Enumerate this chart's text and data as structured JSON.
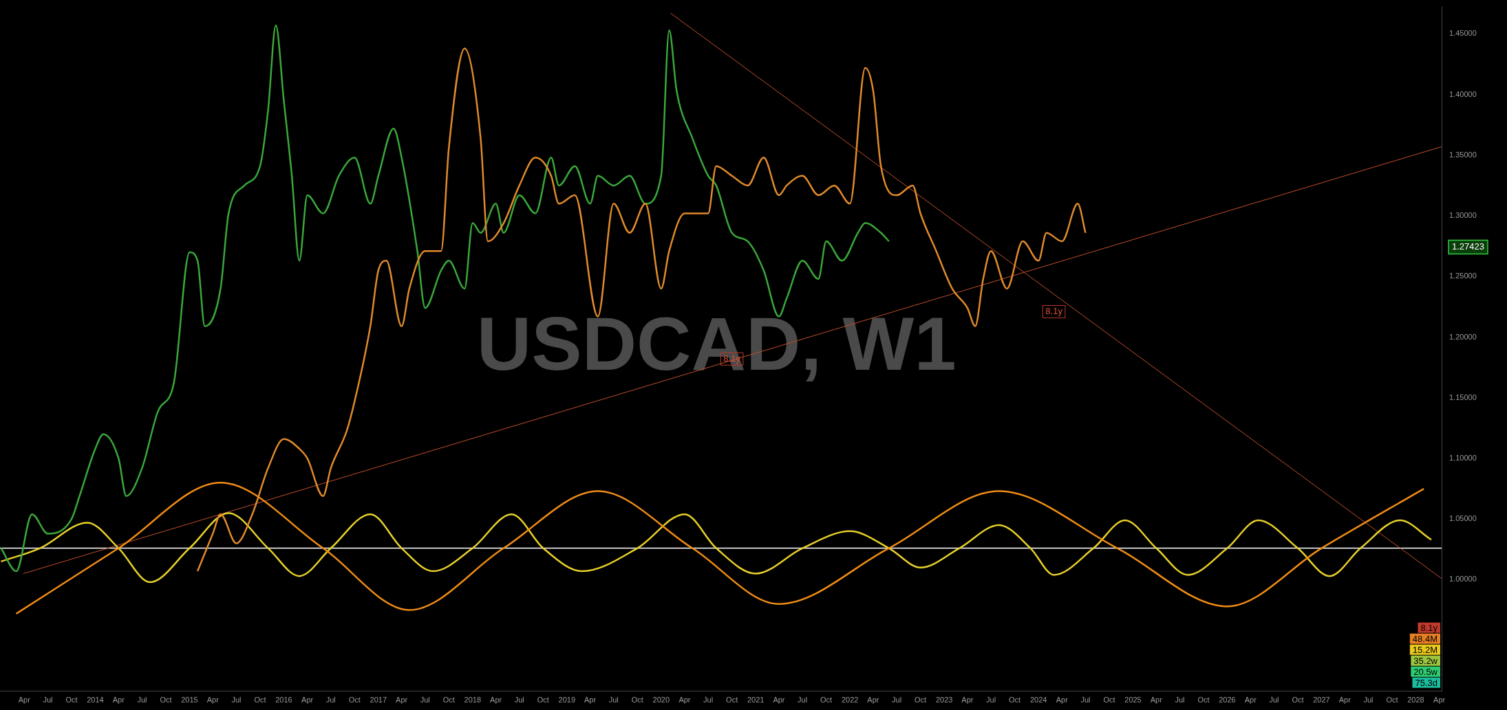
{
  "chart_data": {
    "type": "line",
    "title": "USDCAD, W1",
    "xlim": [
      "2012-12-28",
      "2028-04-10"
    ],
    "ylim": [
      0.908,
      1.4725
    ],
    "yticks": [
      {
        "value": 1.0,
        "label": "1.00000"
      },
      {
        "value": 1.05,
        "label": "1.05000"
      },
      {
        "value": 1.1,
        "label": "1.10000"
      },
      {
        "value": 1.15,
        "label": "1.15000"
      },
      {
        "value": 1.2,
        "label": "1.20000"
      },
      {
        "value": 1.25,
        "label": "1.25000"
      },
      {
        "value": 1.3,
        "label": "1.30000"
      },
      {
        "value": 1.35,
        "label": "1.35000"
      },
      {
        "value": 1.4,
        "label": "1.40000"
      },
      {
        "value": 1.45,
        "label": "1.45000"
      }
    ],
    "xticks": [
      {
        "value": "2013-04",
        "label": "Apr"
      },
      {
        "value": "2013-07",
        "label": "Jul"
      },
      {
        "value": "2013-10",
        "label": "Oct"
      },
      {
        "value": "2014-01",
        "label": "2014"
      },
      {
        "value": "2014-04",
        "label": "Apr"
      },
      {
        "value": "2014-07",
        "label": "Jul"
      },
      {
        "value": "2014-10",
        "label": "Oct"
      },
      {
        "value": "2015-01",
        "label": "2015"
      },
      {
        "value": "2015-04",
        "label": "Apr"
      },
      {
        "value": "2015-07",
        "label": "Jul"
      },
      {
        "value": "2015-10",
        "label": "Oct"
      },
      {
        "value": "2016-01",
        "label": "2016"
      },
      {
        "value": "2016-04",
        "label": "Apr"
      },
      {
        "value": "2016-07",
        "label": "Jul"
      },
      {
        "value": "2016-10",
        "label": "Oct"
      },
      {
        "value": "2017-01",
        "label": "2017"
      },
      {
        "value": "2017-04",
        "label": "Apr"
      },
      {
        "value": "2017-07",
        "label": "Jul"
      },
      {
        "value": "2017-10",
        "label": "Oct"
      },
      {
        "value": "2018-01",
        "label": "2018"
      },
      {
        "value": "2018-04",
        "label": "Apr"
      },
      {
        "value": "2018-07",
        "label": "Jul"
      },
      {
        "value": "2018-10",
        "label": "Oct"
      },
      {
        "value": "2019-01",
        "label": "2019"
      },
      {
        "value": "2019-04",
        "label": "Apr"
      },
      {
        "value": "2019-07",
        "label": "Jul"
      },
      {
        "value": "2019-10",
        "label": "Oct"
      },
      {
        "value": "2020-01",
        "label": "2020"
      },
      {
        "value": "2020-04",
        "label": "Apr"
      },
      {
        "value": "2020-07",
        "label": "Jul"
      },
      {
        "value": "2020-10",
        "label": "Oct"
      },
      {
        "value": "2021-01",
        "label": "2021"
      },
      {
        "value": "2021-04",
        "label": "Apr"
      },
      {
        "value": "2021-07",
        "label": "Jul"
      },
      {
        "value": "2021-10",
        "label": "Oct"
      },
      {
        "value": "2022-01",
        "label": "2022"
      },
      {
        "value": "2022-04",
        "label": "Apr"
      },
      {
        "value": "2022-07",
        "label": "Jul"
      },
      {
        "value": "2022-10",
        "label": "Oct"
      },
      {
        "value": "2023-01",
        "label": "2023"
      },
      {
        "value": "2023-04",
        "label": "Apr"
      },
      {
        "value": "2023-07",
        "label": "Jul"
      },
      {
        "value": "2023-10",
        "label": "Oct"
      },
      {
        "value": "2024-01",
        "label": "2024"
      },
      {
        "value": "2024-04",
        "label": "Apr"
      },
      {
        "value": "2024-07",
        "label": "Jul"
      },
      {
        "value": "2024-10",
        "label": "Oct"
      },
      {
        "value": "2025-01",
        "label": "2025"
      },
      {
        "value": "2025-04",
        "label": "Apr"
      },
      {
        "value": "2025-07",
        "label": "Jul"
      },
      {
        "value": "2025-10",
        "label": "Oct"
      },
      {
        "value": "2026-01",
        "label": "2026"
      },
      {
        "value": "2026-04",
        "label": "Apr"
      },
      {
        "value": "2026-07",
        "label": "Jul"
      },
      {
        "value": "2026-10",
        "label": "Oct"
      },
      {
        "value": "2027-01",
        "label": "2027"
      },
      {
        "value": "2027-04",
        "label": "Apr"
      },
      {
        "value": "2027-07",
        "label": "Jul"
      },
      {
        "value": "2027-10",
        "label": "Oct"
      },
      {
        "value": "2028-01",
        "label": "2028"
      },
      {
        "value": "2028-04",
        "label": "Apr"
      }
    ],
    "series": [
      {
        "color": "#e08a2c",
        "x": [
          "2015-02",
          "2015-04",
          "2015-05",
          "2015-07",
          "2015-09",
          "2015-11",
          "2016-01",
          "2016-03",
          "2016-04",
          "2016-06",
          "2016-07",
          "2016-09",
          "2016-10",
          "2016-12",
          "2017-01",
          "2017-02",
          "2017-04",
          "2017-05",
          "2017-07",
          "2017-09",
          "2017-10",
          "2017-12",
          "2018-02",
          "2018-03",
          "2018-05",
          "2018-07",
          "2018-09",
          "2018-11",
          "2018-12",
          "2019-02",
          "2019-05",
          "2019-07",
          "2019-09",
          "2019-11",
          "2020-01",
          "2020-02",
          "2020-04",
          "2020-07",
          "2020-08",
          "2020-10",
          "2020-12",
          "2021-02",
          "2021-04",
          "2021-05",
          "2021-07",
          "2021-09",
          "2021-11",
          "2022-01",
          "2022-03",
          "2022-04",
          "2022-05",
          "2022-07",
          "2022-09",
          "2022-10",
          "2022-12",
          "2023-02",
          "2023-04",
          "2023-05",
          "2023-06",
          "2023-07",
          "2023-09",
          "2023-11",
          "2024-01",
          "2024-02",
          "2024-04",
          "2024-06",
          "2024-07"
        ],
        "values": [
          1.007,
          1.038,
          1.054,
          1.03,
          1.054,
          1.092,
          1.116,
          1.108,
          1.1,
          1.069,
          1.092,
          1.123,
          1.147,
          1.209,
          1.255,
          1.263,
          1.209,
          1.24,
          1.271,
          1.271,
          1.356,
          1.438,
          1.364,
          1.279,
          1.294,
          1.325,
          1.348,
          1.333,
          1.31,
          1.317,
          1.217,
          1.31,
          1.286,
          1.31,
          1.24,
          1.271,
          1.302,
          1.302,
          1.341,
          1.333,
          1.325,
          1.348,
          1.317,
          1.325,
          1.333,
          1.317,
          1.325,
          1.31,
          1.422,
          1.403,
          1.341,
          1.317,
          1.325,
          1.302,
          1.271,
          1.24,
          1.224,
          1.209,
          1.248,
          1.271,
          1.24,
          1.279,
          1.263,
          1.286,
          1.279,
          1.31,
          1.286
        ]
      },
      {
        "color": "#3aa83a",
        "x": [
          "2013-01",
          "2013-03",
          "2013-05",
          "2013-07",
          "2013-10",
          "2013-11",
          "2014-01",
          "2014-02",
          "2014-04",
          "2014-05",
          "2014-07",
          "2014-09",
          "2014-11",
          "2015-01",
          "2015-02",
          "2015-03",
          "2015-05",
          "2015-06",
          "2015-08",
          "2015-10",
          "2015-11",
          "2015-12",
          "2016-01",
          "2016-02",
          "2016-03",
          "2016-04",
          "2016-06",
          "2016-08",
          "2016-10",
          "2016-12",
          "2017-01",
          "2017-03",
          "2017-04",
          "2017-06",
          "2017-07",
          "2017-09",
          "2017-10",
          "2017-12",
          "2018-01",
          "2018-02",
          "2018-04",
          "2018-05",
          "2018-07",
          "2018-09",
          "2018-11",
          "2018-12",
          "2019-02",
          "2019-04",
          "2019-05",
          "2019-07",
          "2019-09",
          "2019-11",
          "2020-01",
          "2020-02",
          "2020-03",
          "2020-05",
          "2020-07",
          "2020-08",
          "2020-10",
          "2020-12",
          "2021-02",
          "2021-04",
          "2021-05",
          "2021-07",
          "2021-09",
          "2021-10",
          "2021-12",
          "2022-02",
          "2022-03",
          "2022-05",
          "2022-06"
        ],
        "values": [
          1.026,
          1.007,
          1.054,
          1.038,
          1.05,
          1.069,
          1.108,
          1.12,
          1.1,
          1.069,
          1.092,
          1.139,
          1.162,
          1.27,
          1.263,
          1.209,
          1.24,
          1.302,
          1.325,
          1.341,
          1.387,
          1.457,
          1.395,
          1.333,
          1.263,
          1.317,
          1.302,
          1.333,
          1.348,
          1.31,
          1.333,
          1.372,
          1.348,
          1.271,
          1.224,
          1.255,
          1.263,
          1.24,
          1.294,
          1.286,
          1.31,
          1.286,
          1.317,
          1.302,
          1.348,
          1.325,
          1.341,
          1.31,
          1.333,
          1.325,
          1.333,
          1.31,
          1.333,
          1.453,
          1.403,
          1.364,
          1.333,
          1.325,
          1.286,
          1.279,
          1.255,
          1.217,
          1.232,
          1.263,
          1.248,
          1.279,
          1.263,
          1.286,
          1.294,
          1.286,
          1.279
        ]
      },
      {
        "color": "#f08c14",
        "x": [
          "2013-03",
          "2014-04",
          "2015-05",
          "2016-06",
          "2017-05",
          "2018-05",
          "2019-05",
          "2020-05",
          "2021-04",
          "2022-06",
          "2023-08",
          "2024-11",
          "2026-01",
          "2027-01",
          "2028-02"
        ],
        "values": [
          0.972,
          1.026,
          1.08,
          1.026,
          0.975,
          1.026,
          1.073,
          1.026,
          0.98,
          1.026,
          1.073,
          1.026,
          0.978,
          1.026,
          1.075
        ]
      },
      {
        "color": "#e8d02a",
        "x": [
          "2013-01",
          "2013-06",
          "2013-12",
          "2014-04",
          "2014-08",
          "2015-01",
          "2015-06",
          "2015-11",
          "2016-03",
          "2016-07",
          "2016-12",
          "2017-04",
          "2017-08",
          "2018-01",
          "2018-06",
          "2018-10",
          "2019-03",
          "2019-10",
          "2020-04",
          "2020-08",
          "2021-01",
          "2021-07",
          "2022-01",
          "2022-06",
          "2022-10",
          "2023-03",
          "2023-08",
          "2023-12",
          "2024-03",
          "2024-08",
          "2024-12",
          "2025-04",
          "2025-08",
          "2026-01",
          "2026-05",
          "2026-10",
          "2027-02",
          "2027-06",
          "2027-11",
          "2028-03"
        ],
        "values": [
          1.015,
          1.026,
          1.047,
          1.026,
          0.998,
          1.026,
          1.055,
          1.026,
          1.003,
          1.026,
          1.054,
          1.026,
          1.007,
          1.026,
          1.054,
          1.026,
          1.007,
          1.026,
          1.054,
          1.026,
          1.005,
          1.026,
          1.04,
          1.026,
          1.01,
          1.026,
          1.045,
          1.026,
          1.004,
          1.026,
          1.049,
          1.026,
          1.004,
          1.026,
          1.049,
          1.026,
          1.003,
          1.026,
          1.049,
          1.033
        ]
      },
      {
        "color": "#c0502a",
        "x": [
          "2013-03-28",
          "2028-04-10"
        ],
        "values": [
          1.005,
          1.357
        ]
      },
      {
        "color": "#c0502a",
        "x": [
          "2020-02-07",
          "2028-04-10"
        ],
        "values": [
          1.467,
          1.001
        ]
      }
    ],
    "ref_lines": [
      {
        "axis": "y",
        "value": 1.026,
        "color": "#ffffff"
      }
    ],
    "annotations": [
      {
        "text": "8.1y",
        "x": "2020-10",
        "y": 1.182
      },
      {
        "text": "8.1y",
        "x": "2024-03",
        "y": 1.221
      },
      "1.27423",
      "8.1y",
      "48.4M",
      "15.2M",
      "35.2w",
      "20.5w",
      "75.3d"
    ]
  }
}
